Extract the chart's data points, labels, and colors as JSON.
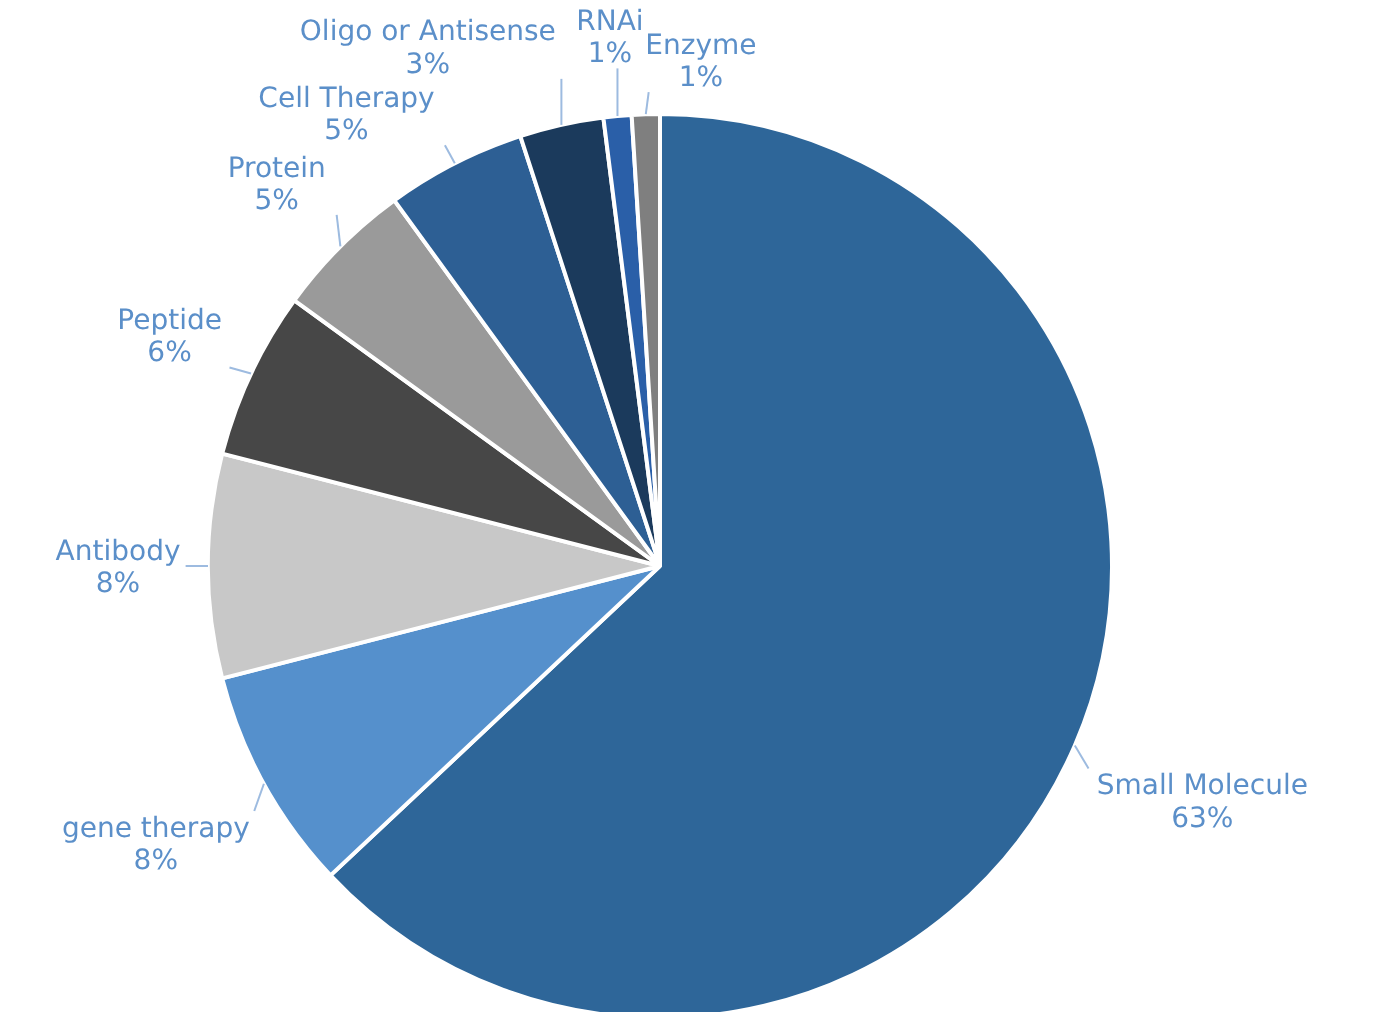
{
  "chart_data": {
    "type": "pie",
    "categories": [
      "Small Molecule",
      "gene therapy",
      "Antibody",
      "Peptide",
      "Protein",
      "Cell Therapy",
      "Oligo or Antisense",
      "RNAi",
      "Enzyme"
    ],
    "values": [
      63,
      8,
      8,
      6,
      5,
      5,
      3,
      1,
      1
    ],
    "colors": [
      "#2e6699",
      "#5590cc",
      "#c8c8c8",
      "#474747",
      "#9a9a9a",
      "#2d5f94",
      "#1b3a5c",
      "#2a5fa8",
      "#7f7f7f"
    ],
    "value_labels": [
      "63%",
      "8%",
      "8%",
      "6%",
      "5%",
      "5%",
      "3%",
      "1%",
      "1%"
    ]
  }
}
